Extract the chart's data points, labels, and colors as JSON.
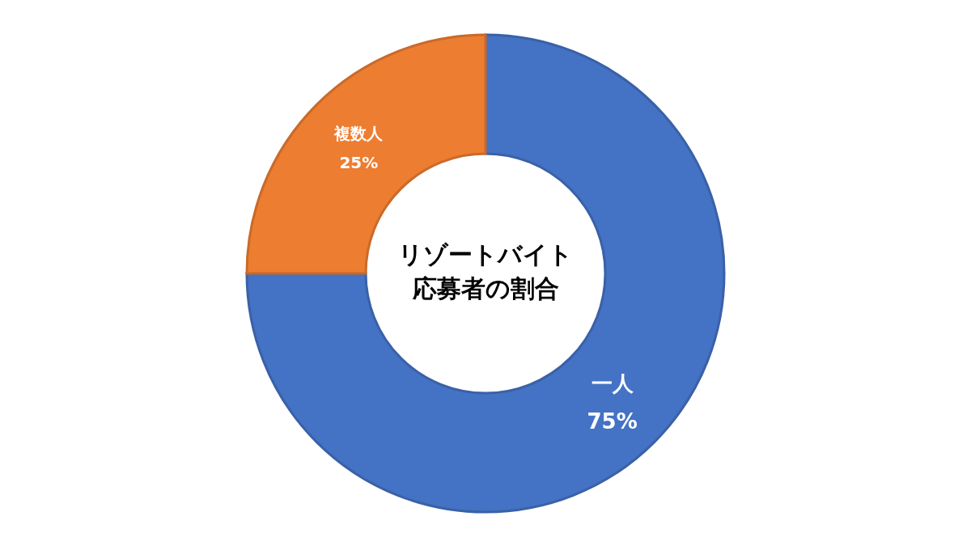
{
  "chart_data": {
    "type": "donut",
    "title": "リゾートバイト応募者の割合",
    "categories": [
      "一人",
      "複数人"
    ],
    "values": [
      75,
      25
    ],
    "colors": [
      "#4472c4",
      "#ed7d31"
    ],
    "value_labels": [
      "75%",
      "25%"
    ]
  }
}
